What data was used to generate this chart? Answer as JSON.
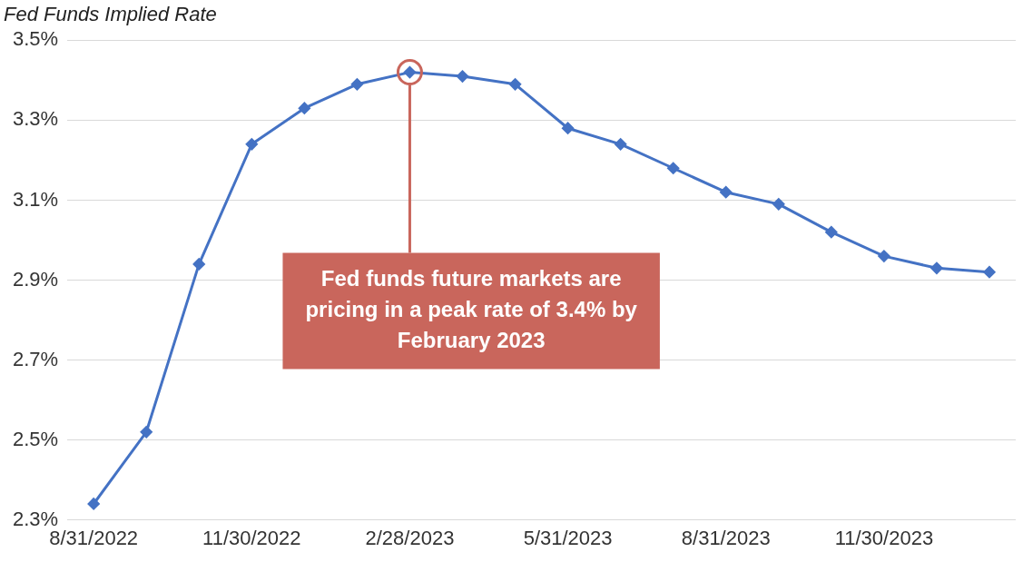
{
  "chart_data": {
    "type": "line",
    "title": "Fed Funds Implied Rate",
    "categories": [
      "8/31/2022",
      null,
      null,
      "11/30/2022",
      null,
      null,
      "2/28/2023",
      null,
      null,
      "5/31/2023",
      null,
      null,
      "8/31/2023",
      null,
      null,
      "11/30/2023",
      null,
      null
    ],
    "series": [
      {
        "color": "#4472c4",
        "values": [
          2.34,
          2.52,
          2.94,
          3.24,
          3.33,
          3.39,
          3.42,
          3.41,
          3.39,
          3.28,
          3.24,
          3.18,
          3.12,
          3.09,
          3.02,
          2.96,
          2.93,
          2.92
        ]
      }
    ],
    "ylim": [
      2.3,
      3.5
    ],
    "yticks": [
      {
        "value": 2.3,
        "label": "2.3%"
      },
      {
        "value": 2.5,
        "label": "2.5%"
      },
      {
        "value": 2.7,
        "label": "2.7%"
      },
      {
        "value": 2.9,
        "label": "2.9%"
      },
      {
        "value": 3.1,
        "label": "3.1%"
      },
      {
        "value": 3.3,
        "label": "3.3%"
      },
      {
        "value": 3.5,
        "label": "3.5%"
      }
    ],
    "grid": "y",
    "marker": "diamond",
    "line_style": "solid",
    "legend": false,
    "annotations": [
      "Fed funds future markets are pricing in a peak rate of 3.4% by February 2023"
    ]
  }
}
